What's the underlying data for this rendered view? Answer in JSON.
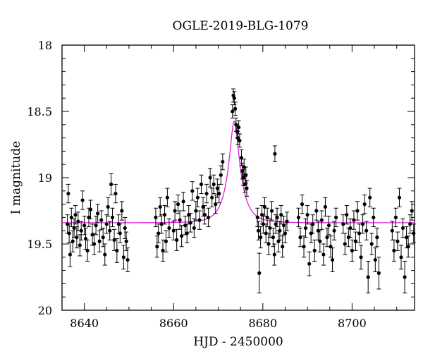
{
  "chart_data": {
    "type": "scatter",
    "title": "OGLE-2019-BLG-1079",
    "xlabel": "HJD - 2450000",
    "ylabel": "I magnitude",
    "xlim": [
      8635,
      8714
    ],
    "ylim": [
      18.0,
      20.0
    ],
    "y_inverted": true,
    "grid": false,
    "x_ticks": [
      8640,
      8660,
      8680,
      8700
    ],
    "x_tick_labels": [
      "8640",
      "8660",
      "8680",
      "8700"
    ],
    "y_ticks": [
      18.0,
      18.5,
      19.0,
      19.5,
      20.0
    ],
    "y_tick_labels": [
      "18",
      "18.5",
      "19",
      "19.5",
      "20"
    ],
    "colors": {
      "data": "#000000",
      "model": "#e020e0"
    },
    "series": [
      {
        "kind": "points_with_errorbars",
        "points": [
          [
            8636.2,
            19.35,
            0.07
          ],
          [
            8636.4,
            19.12,
            0.07
          ],
          [
            8636.6,
            19.42,
            0.07
          ],
          [
            8636.8,
            19.58,
            0.09
          ],
          [
            8637.1,
            19.3,
            0.07
          ],
          [
            8637.4,
            19.48,
            0.08
          ],
          [
            8637.7,
            19.38,
            0.07
          ],
          [
            8638.0,
            19.28,
            0.07
          ],
          [
            8638.3,
            19.45,
            0.08
          ],
          [
            8638.6,
            19.33,
            0.07
          ],
          [
            8639.0,
            19.51,
            0.08
          ],
          [
            8639.3,
            19.4,
            0.07
          ],
          [
            8639.6,
            19.17,
            0.07
          ],
          [
            8640.0,
            19.36,
            0.07
          ],
          [
            8640.3,
            19.46,
            0.08
          ],
          [
            8640.7,
            19.55,
            0.08
          ],
          [
            8641.0,
            19.3,
            0.07
          ],
          [
            8641.4,
            19.24,
            0.07
          ],
          [
            8641.8,
            19.43,
            0.08
          ],
          [
            8642.2,
            19.5,
            0.08
          ],
          [
            8642.6,
            19.36,
            0.07
          ],
          [
            8643.0,
            19.27,
            0.07
          ],
          [
            8643.4,
            19.48,
            0.08
          ],
          [
            8643.8,
            19.32,
            0.07
          ],
          [
            8644.2,
            19.45,
            0.07
          ],
          [
            8644.6,
            19.58,
            0.08
          ],
          [
            8645.0,
            19.35,
            0.07
          ],
          [
            8645.3,
            19.22,
            0.07
          ],
          [
            8645.7,
            19.4,
            0.07
          ],
          [
            8646.0,
            19.05,
            0.08
          ],
          [
            8646.3,
            19.3,
            0.07
          ],
          [
            8646.7,
            19.47,
            0.08
          ],
          [
            8647.0,
            19.12,
            0.07
          ],
          [
            8647.3,
            19.55,
            0.09
          ],
          [
            8647.7,
            19.35,
            0.07
          ],
          [
            8648.0,
            19.42,
            0.07
          ],
          [
            8648.4,
            19.25,
            0.07
          ],
          [
            8648.8,
            19.6,
            0.09
          ],
          [
            8649.1,
            19.38,
            0.08
          ],
          [
            8649.4,
            19.48,
            0.07
          ],
          [
            8649.7,
            19.62,
            0.09
          ],
          [
            8656.0,
            19.3,
            0.07
          ],
          [
            8656.3,
            19.52,
            0.08
          ],
          [
            8656.6,
            19.42,
            0.07
          ],
          [
            8657.0,
            19.22,
            0.07
          ],
          [
            8657.3,
            19.35,
            0.07
          ],
          [
            8657.6,
            19.55,
            0.08
          ],
          [
            8658.0,
            19.28,
            0.07
          ],
          [
            8658.3,
            19.48,
            0.08
          ],
          [
            8658.6,
            19.15,
            0.07
          ],
          [
            8659.0,
            19.38,
            0.07
          ],
          [
            8660.0,
            19.4,
            0.07
          ],
          [
            8660.3,
            19.25,
            0.07
          ],
          [
            8660.7,
            19.47,
            0.08
          ],
          [
            8661.0,
            19.2,
            0.07
          ],
          [
            8661.4,
            19.32,
            0.07
          ],
          [
            8661.8,
            19.44,
            0.08
          ],
          [
            8662.2,
            19.18,
            0.07
          ],
          [
            8662.6,
            19.36,
            0.07
          ],
          [
            8663.0,
            19.42,
            0.07
          ],
          [
            8663.4,
            19.28,
            0.07
          ],
          [
            8663.8,
            19.34,
            0.07
          ],
          [
            8664.2,
            19.1,
            0.07
          ],
          [
            8664.6,
            19.38,
            0.07
          ],
          [
            8665.0,
            19.25,
            0.07
          ],
          [
            8665.4,
            19.15,
            0.07
          ],
          [
            8665.8,
            19.32,
            0.07
          ],
          [
            8666.2,
            19.05,
            0.07
          ],
          [
            8666.6,
            19.22,
            0.07
          ],
          [
            8667.0,
            19.28,
            0.07
          ],
          [
            8667.4,
            19.12,
            0.07
          ],
          [
            8667.8,
            19.3,
            0.07
          ],
          [
            8668.2,
            19.0,
            0.07
          ],
          [
            8668.6,
            19.15,
            0.07
          ],
          [
            8669.0,
            19.05,
            0.07
          ],
          [
            8669.4,
            19.2,
            0.07
          ],
          [
            8669.8,
            19.08,
            0.07
          ],
          [
            8670.2,
            19.12,
            0.07
          ],
          [
            8670.6,
            18.98,
            0.07
          ],
          [
            8671.0,
            18.88,
            0.06
          ],
          [
            8673.2,
            18.5,
            0.05
          ],
          [
            8673.4,
            18.38,
            0.05
          ],
          [
            8673.6,
            18.4,
            0.05
          ],
          [
            8673.8,
            18.48,
            0.05
          ],
          [
            8674.0,
            18.6,
            0.05
          ],
          [
            8674.2,
            18.65,
            0.05
          ],
          [
            8674.4,
            18.7,
            0.05
          ],
          [
            8674.6,
            18.62,
            0.05
          ],
          [
            8674.8,
            18.72,
            0.05
          ],
          [
            8675.2,
            18.85,
            0.06
          ],
          [
            8675.4,
            18.95,
            0.06
          ],
          [
            8675.6,
            19.0,
            0.06
          ],
          [
            8675.8,
            18.92,
            0.06
          ],
          [
            8676.0,
            19.05,
            0.06
          ],
          [
            8676.2,
            18.98,
            0.06
          ],
          [
            8676.4,
            19.08,
            0.06
          ],
          [
            8678.8,
            19.3,
            0.07
          ],
          [
            8679.0,
            19.4,
            0.07
          ],
          [
            8679.2,
            19.72,
            0.15
          ],
          [
            8679.5,
            19.45,
            0.08
          ],
          [
            8679.8,
            19.28,
            0.07
          ],
          [
            8680.1,
            19.35,
            0.07
          ],
          [
            8680.4,
            19.22,
            0.07
          ],
          [
            8680.7,
            19.42,
            0.07
          ],
          [
            8681.0,
            19.3,
            0.07
          ],
          [
            8681.3,
            19.5,
            0.08
          ],
          [
            8681.6,
            19.38,
            0.07
          ],
          [
            8682.0,
            19.25,
            0.07
          ],
          [
            8682.3,
            19.45,
            0.07
          ],
          [
            8682.6,
            19.58,
            0.08
          ],
          [
            8682.9,
            19.35,
            0.07
          ],
          [
            8683.2,
            19.3,
            0.07
          ],
          [
            8683.5,
            19.48,
            0.08
          ],
          [
            8683.8,
            19.4,
            0.07
          ],
          [
            8684.1,
            19.28,
            0.07
          ],
          [
            8684.4,
            19.52,
            0.08
          ],
          [
            8684.7,
            19.36,
            0.07
          ],
          [
            8685.0,
            19.42,
            0.07
          ],
          [
            8685.4,
            19.33,
            0.07
          ],
          [
            8682.7,
            18.82,
            0.06
          ],
          [
            8688.0,
            19.3,
            0.07
          ],
          [
            8688.4,
            19.45,
            0.07
          ],
          [
            8688.8,
            19.2,
            0.07
          ],
          [
            8689.2,
            19.52,
            0.08
          ],
          [
            8689.6,
            19.38,
            0.07
          ],
          [
            8690.0,
            19.28,
            0.07
          ],
          [
            8690.4,
            19.65,
            0.09
          ],
          [
            8690.8,
            19.42,
            0.07
          ],
          [
            8691.2,
            19.35,
            0.07
          ],
          [
            8691.6,
            19.55,
            0.08
          ],
          [
            8692.0,
            19.25,
            0.07
          ],
          [
            8692.4,
            19.4,
            0.07
          ],
          [
            8692.8,
            19.48,
            0.08
          ],
          [
            8693.2,
            19.32,
            0.07
          ],
          [
            8693.6,
            19.58,
            0.08
          ],
          [
            8694.0,
            19.22,
            0.07
          ],
          [
            8694.4,
            19.45,
            0.07
          ],
          [
            8694.8,
            19.36,
            0.07
          ],
          [
            8695.2,
            19.52,
            0.08
          ],
          [
            8695.6,
            19.62,
            0.09
          ],
          [
            8696.0,
            19.4,
            0.07
          ],
          [
            8696.4,
            19.3,
            0.07
          ],
          [
            8698.0,
            19.35,
            0.07
          ],
          [
            8698.4,
            19.5,
            0.08
          ],
          [
            8698.8,
            19.28,
            0.07
          ],
          [
            8699.2,
            19.45,
            0.07
          ],
          [
            8699.6,
            19.38,
            0.07
          ],
          [
            8700.0,
            19.55,
            0.08
          ],
          [
            8700.4,
            19.32,
            0.07
          ],
          [
            8700.8,
            19.48,
            0.07
          ],
          [
            8701.2,
            19.25,
            0.07
          ],
          [
            8701.6,
            19.42,
            0.07
          ],
          [
            8702.0,
            19.6,
            0.09
          ],
          [
            8702.4,
            19.35,
            0.07
          ],
          [
            8702.8,
            19.2,
            0.07
          ],
          [
            8703.2,
            19.4,
            0.07
          ],
          [
            8703.6,
            19.75,
            0.12
          ],
          [
            8704.0,
            19.15,
            0.07
          ],
          [
            8704.4,
            19.5,
            0.08
          ],
          [
            8704.8,
            19.3,
            0.07
          ],
          [
            8705.2,
            19.62,
            0.09
          ],
          [
            8705.6,
            19.45,
            0.07
          ],
          [
            8706.0,
            19.72,
            0.12
          ],
          [
            8709.0,
            19.4,
            0.07
          ],
          [
            8709.4,
            19.55,
            0.08
          ],
          [
            8709.8,
            19.3,
            0.07
          ],
          [
            8710.2,
            19.48,
            0.07
          ],
          [
            8710.6,
            19.15,
            0.07
          ],
          [
            8711.0,
            19.6,
            0.09
          ],
          [
            8711.4,
            19.38,
            0.07
          ],
          [
            8711.8,
            19.75,
            0.12
          ],
          [
            8712.2,
            19.45,
            0.08
          ],
          [
            8712.6,
            19.52,
            0.08
          ],
          [
            8713.0,
            19.35,
            0.07
          ],
          [
            8713.4,
            19.25,
            0.07
          ],
          [
            8713.8,
            19.42,
            0.07
          ]
        ]
      },
      {
        "kind": "model_curve",
        "t0": 8673.6,
        "tE": 3.2,
        "u0": 0.3,
        "baseline": 19.34,
        "fs": 0.42
      }
    ]
  }
}
